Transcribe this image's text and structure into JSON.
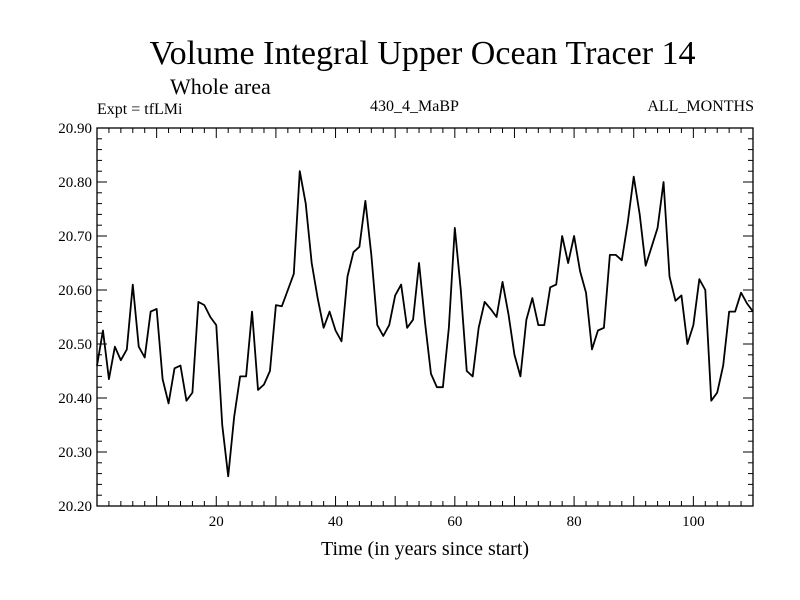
{
  "chart_data": {
    "type": "line",
    "title": "Volume Integral Upper Ocean Tracer 14",
    "subtitle": "Whole area",
    "header_left": "Expt = tfLMi",
    "header_center": "430_4_MaBP",
    "header_right": "ALL_MONTHS",
    "xlabel": "Time (in years since start)",
    "ylabel": "",
    "xlim": [
      0,
      110
    ],
    "ylim": [
      20.2,
      20.9
    ],
    "x_ticks": [
      20,
      40,
      60,
      80,
      100
    ],
    "y_ticks": [
      "20.20",
      "20.30",
      "20.40",
      "20.50",
      "20.60",
      "20.70",
      "20.80",
      "20.90"
    ],
    "line_color": "#000000",
    "series": [
      {
        "name": "Tracer 14",
        "x": [
          0,
          1,
          2,
          3,
          4,
          5,
          6,
          7,
          8,
          9,
          10,
          11,
          12,
          13,
          14,
          15,
          16,
          17,
          18,
          19,
          20,
          21,
          22,
          23,
          24,
          25,
          26,
          27,
          28,
          29,
          30,
          31,
          32,
          33,
          34,
          35,
          36,
          37,
          38,
          39,
          40,
          41,
          42,
          43,
          44,
          45,
          46,
          47,
          48,
          49,
          50,
          51,
          52,
          53,
          54,
          55,
          56,
          57,
          58,
          59,
          60,
          61,
          62,
          63,
          64,
          65,
          66,
          67,
          68,
          69,
          70,
          71,
          72,
          73,
          74,
          75,
          76,
          77,
          78,
          79,
          80,
          81,
          82,
          83,
          84,
          85,
          86,
          87,
          88,
          89,
          90,
          91,
          92,
          93,
          94,
          95,
          96,
          97,
          98,
          99,
          100,
          101,
          102,
          103,
          104,
          105,
          106,
          107,
          108,
          109,
          110
        ],
        "y": [
          20.46,
          20.525,
          20.435,
          20.495,
          20.47,
          20.49,
          20.61,
          20.495,
          20.475,
          20.56,
          20.565,
          20.435,
          20.39,
          20.455,
          20.46,
          20.395,
          20.41,
          20.578,
          20.572,
          20.55,
          20.535,
          20.35,
          20.255,
          20.365,
          20.44,
          20.44,
          20.56,
          20.415,
          20.425,
          20.45,
          20.572,
          20.57,
          20.6,
          20.63,
          20.82,
          20.76,
          20.65,
          20.585,
          20.53,
          20.56,
          20.525,
          20.505,
          20.625,
          20.67,
          20.68,
          20.765,
          20.665,
          20.535,
          20.515,
          20.535,
          20.59,
          20.61,
          20.53,
          20.545,
          20.65,
          20.54,
          20.445,
          20.42,
          20.42,
          20.53,
          20.715,
          20.6,
          20.45,
          20.44,
          20.53,
          20.578,
          20.565,
          20.55,
          20.615,
          20.555,
          20.48,
          20.44,
          20.545,
          20.585,
          20.535,
          20.535,
          20.605,
          20.61,
          20.7,
          20.65,
          20.7,
          20.635,
          20.595,
          20.49,
          20.525,
          20.53,
          20.665,
          20.665,
          20.655,
          20.725,
          20.81,
          20.74,
          20.645,
          20.68,
          20.715,
          20.8,
          20.625,
          20.58,
          20.59,
          20.5,
          20.535,
          20.62,
          20.6,
          20.395,
          20.41,
          20.46,
          20.56,
          20.56,
          20.595,
          20.575,
          20.56
        ]
      }
    ]
  }
}
